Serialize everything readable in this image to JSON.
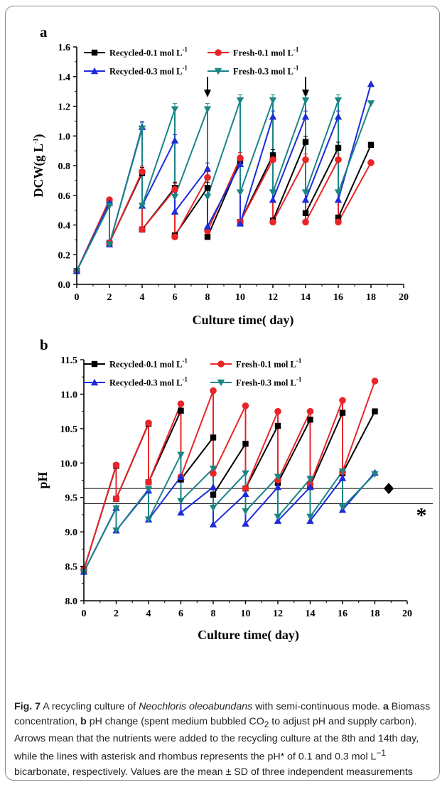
{
  "chart_data": [
    {
      "panel": "a",
      "type": "line",
      "xlabel": "Culture time( day)",
      "ylabel": "DCW(g L",
      "ylabel_sup": "-1",
      "ylabel_close": ")",
      "xlim": [
        0,
        20
      ],
      "ylim": [
        0.0,
        1.6
      ],
      "x_ticks": [
        "0",
        "2",
        "4",
        "6",
        "8",
        "10",
        "12",
        "14",
        "16",
        "18",
        "20"
      ],
      "y_ticks": [
        "0.0",
        "0.2",
        "0.4",
        "0.6",
        "0.8",
        "1.0",
        "1.2",
        "1.4",
        "1.6"
      ],
      "arrows_at_day": [
        8,
        14
      ],
      "series": [
        {
          "name": "Recycled-0.1 mol L",
          "sup": "-1",
          "color": "#000000",
          "marker": "square",
          "points": [
            [
              0,
              0.09
            ],
            [
              2,
              0.55
            ],
            [
              2,
              0.28
            ],
            [
              4,
              0.75
            ],
            [
              4,
              0.37
            ],
            [
              6,
              0.65
            ],
            [
              6,
              0.33
            ],
            [
              8,
              0.65
            ],
            [
              8,
              0.32
            ],
            [
              10,
              0.83
            ],
            [
              10,
              0.42
            ],
            [
              12,
              0.87
            ],
            [
              12,
              0.43
            ],
            [
              14,
              0.96
            ],
            [
              14,
              0.48
            ],
            [
              16,
              0.92
            ],
            [
              16,
              0.45
            ],
            [
              18,
              0.94
            ]
          ]
        },
        {
          "name": "Fresh-0.1 mol L",
          "sup": "-1",
          "color": "#e8262a",
          "marker": "circle",
          "points": [
            [
              0,
              0.09
            ],
            [
              2,
              0.57
            ],
            [
              2,
              0.28
            ],
            [
              4,
              0.76
            ],
            [
              4,
              0.37
            ],
            [
              6,
              0.64
            ],
            [
              6,
              0.32
            ],
            [
              8,
              0.72
            ],
            [
              8,
              0.36
            ],
            [
              10,
              0.85
            ],
            [
              10,
              0.42
            ],
            [
              12,
              0.84
            ],
            [
              12,
              0.42
            ],
            [
              14,
              0.84
            ],
            [
              14,
              0.42
            ],
            [
              16,
              0.84
            ],
            [
              16,
              0.42
            ],
            [
              18,
              0.82
            ]
          ]
        },
        {
          "name": "Recycled-0.3 mol L",
          "sup": "-1",
          "color": "#1f2bd9",
          "marker": "triangle-up",
          "points": [
            [
              0,
              0.09
            ],
            [
              2,
              0.55
            ],
            [
              2,
              0.27
            ],
            [
              4,
              1.06
            ],
            [
              4,
              0.53
            ],
            [
              6,
              0.97
            ],
            [
              6,
              0.49
            ],
            [
              8,
              0.78
            ],
            [
              8,
              0.39
            ],
            [
              10,
              0.81
            ],
            [
              10,
              0.41
            ],
            [
              12,
              1.13
            ],
            [
              12,
              0.57
            ],
            [
              14,
              1.13
            ],
            [
              14,
              0.57
            ],
            [
              16,
              1.13
            ],
            [
              16,
              0.57
            ],
            [
              18,
              1.35
            ]
          ]
        },
        {
          "name": "Fresh-0.3 mol L",
          "sup": "-1",
          "color": "#1a8585",
          "marker": "triangle-down",
          "points": [
            [
              0,
              0.09
            ],
            [
              2,
              0.53
            ],
            [
              2,
              0.27
            ],
            [
              4,
              1.05
            ],
            [
              4,
              0.53
            ],
            [
              6,
              1.18
            ],
            [
              6,
              0.59
            ],
            [
              8,
              1.18
            ],
            [
              8,
              0.59
            ],
            [
              10,
              1.24
            ],
            [
              10,
              0.62
            ],
            [
              12,
              1.24
            ],
            [
              12,
              0.62
            ],
            [
              14,
              1.24
            ],
            [
              14,
              0.62
            ],
            [
              16,
              1.24
            ],
            [
              16,
              0.62
            ],
            [
              18,
              1.22
            ]
          ]
        }
      ]
    },
    {
      "panel": "b",
      "type": "line",
      "xlabel": "Culture time( day)",
      "ylabel": "pH",
      "xlim": [
        0,
        20
      ],
      "ylim": [
        8.0,
        11.5
      ],
      "x_ticks": [
        "0",
        "2",
        "4",
        "6",
        "8",
        "10",
        "12",
        "14",
        "16",
        "18",
        "20"
      ],
      "y_ticks": [
        "8.0",
        "8.5",
        "9.0",
        "9.5",
        "10.0",
        "10.5",
        "11.0",
        "11.5"
      ],
      "reference_lines": [
        {
          "y": 9.63,
          "symbol": "♦"
        },
        {
          "y": 9.41,
          "symbol": "*"
        }
      ],
      "series": [
        {
          "name": "Recycled-0.1 mol L",
          "sup": "-1",
          "color": "#000000",
          "marker": "square",
          "points": [
            [
              0,
              8.45
            ],
            [
              2,
              9.96
            ],
            [
              2,
              9.48
            ],
            [
              4,
              10.57
            ],
            [
              4,
              9.72
            ],
            [
              6,
              10.76
            ],
            [
              6,
              9.76
            ],
            [
              8,
              10.37
            ],
            [
              8,
              9.54
            ],
            [
              10,
              10.28
            ],
            [
              10,
              9.63
            ],
            [
              12,
              10.54
            ],
            [
              12,
              9.71
            ],
            [
              14,
              10.63
            ],
            [
              14,
              9.67
            ],
            [
              16,
              10.73
            ],
            [
              16,
              9.85
            ],
            [
              18,
              10.75
            ]
          ]
        },
        {
          "name": "Fresh-0.1 mol L",
          "sup": "-1",
          "color": "#e8262a",
          "marker": "circle",
          "points": [
            [
              0,
              8.45
            ],
            [
              2,
              9.97
            ],
            [
              2,
              9.48
            ],
            [
              4,
              10.58
            ],
            [
              4,
              9.72
            ],
            [
              6,
              10.86
            ],
            [
              6,
              9.8
            ],
            [
              8,
              11.05
            ],
            [
              8,
              9.85
            ],
            [
              10,
              10.83
            ],
            [
              10,
              9.63
            ],
            [
              12,
              10.75
            ],
            [
              12,
              9.75
            ],
            [
              14,
              10.75
            ],
            [
              14,
              9.69
            ],
            [
              16,
              10.91
            ],
            [
              16,
              9.87
            ],
            [
              18,
              11.19
            ]
          ]
        },
        {
          "name": "Recycled-0.3 mol L",
          "sup": "-1",
          "color": "#1f2bd9",
          "marker": "triangle-up",
          "points": [
            [
              0,
              8.42
            ],
            [
              2,
              9.35
            ],
            [
              2,
              9.02
            ],
            [
              4,
              9.6
            ],
            [
              4,
              9.18
            ],
            [
              6,
              9.8
            ],
            [
              6,
              9.28
            ],
            [
              8,
              9.65
            ],
            [
              8,
              9.11
            ],
            [
              10,
              9.55
            ],
            [
              10,
              9.12
            ],
            [
              12,
              9.65
            ],
            [
              12,
              9.16
            ],
            [
              14,
              9.65
            ],
            [
              14,
              9.16
            ],
            [
              16,
              9.78
            ],
            [
              16,
              9.32
            ],
            [
              18,
              9.86
            ]
          ]
        },
        {
          "name": "Fresh-0.3 mol L",
          "sup": "-1",
          "color": "#1a8585",
          "marker": "triangle-down",
          "points": [
            [
              0,
              8.42
            ],
            [
              2,
              9.34
            ],
            [
              2,
              9.02
            ],
            [
              4,
              9.62
            ],
            [
              4,
              9.18
            ],
            [
              6,
              10.12
            ],
            [
              6,
              9.45
            ],
            [
              8,
              9.92
            ],
            [
              8,
              9.35
            ],
            [
              10,
              9.85
            ],
            [
              10,
              9.3
            ],
            [
              12,
              9.8
            ],
            [
              12,
              9.22
            ],
            [
              14,
              9.77
            ],
            [
              14,
              9.22
            ],
            [
              16,
              9.88
            ],
            [
              16,
              9.36
            ],
            [
              18,
              9.84
            ]
          ]
        }
      ]
    }
  ],
  "caption": {
    "fig_label": "Fig. 7",
    "t1": "  A recycling culture of ",
    "species": "Neochloris oleoabundans",
    "t2": " with semi-continuous mode. ",
    "a_label": "a",
    "t3": " Biomass concentration, ",
    "b_label": "b",
    "t4": " pH change (spent medium bubbled CO",
    "co2_sub": "2",
    "t5": " to adjust pH and supply carbon). Arrows mean that the nutrients were added to the recycling culture at the 8th and 14th day, while the lines with asterisk and rhombus represents the pH* of 0.1 and 0.3 mol L",
    "t5_sup": "−1",
    "t6": " bicarbonate, respectively. Values are the mean ± SD of three independent measurements"
  }
}
